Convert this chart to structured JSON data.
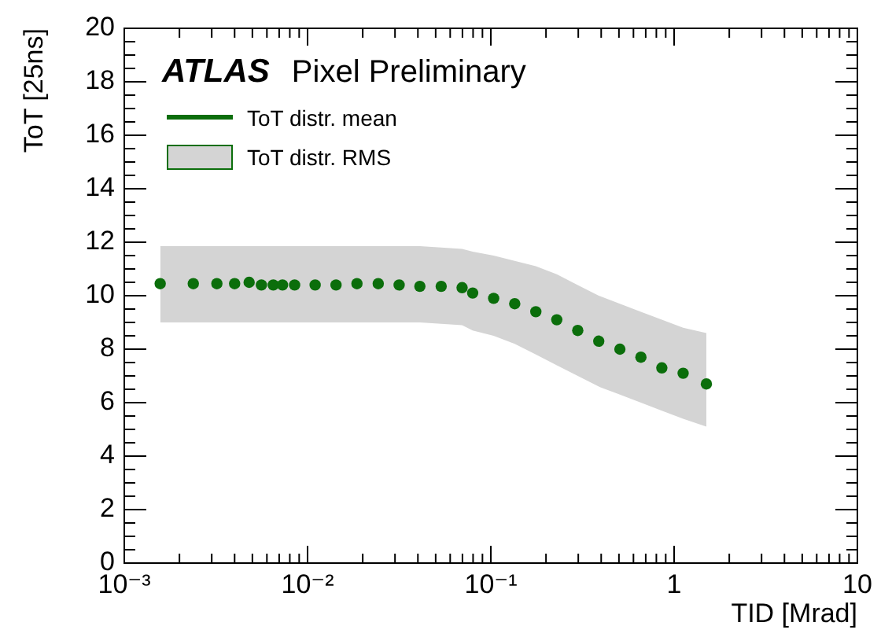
{
  "chart_data": {
    "type": "scatter",
    "xlabel": "TID [Mrad]",
    "ylabel": "ToT [25ns]",
    "annotations": [
      "ATLAS",
      "Pixel Preliminary",
      "ToT distr. RMS"
    ],
    "log": "x",
    "legend": "top left",
    "marker": "circle",
    "grid": false,
    "xlim": [
      0.001,
      10
    ],
    "ylim": [
      0,
      20
    ],
    "xticks": [
      {
        "value": 0.001,
        "label": "10⁻³"
      },
      {
        "value": 0.002,
        "label": null
      },
      {
        "value": 0.003,
        "label": null
      },
      {
        "value": 0.004,
        "label": null
      },
      {
        "value": 0.005,
        "label": null
      },
      {
        "value": 0.006,
        "label": null
      },
      {
        "value": 0.007,
        "label": null
      },
      {
        "value": 0.008,
        "label": null
      },
      {
        "value": 0.009,
        "label": null
      },
      {
        "value": 0.01,
        "label": "10⁻²"
      },
      {
        "value": 0.02,
        "label": null
      },
      {
        "value": 0.03,
        "label": null
      },
      {
        "value": 0.04,
        "label": null
      },
      {
        "value": 0.05,
        "label": null
      },
      {
        "value": 0.06,
        "label": null
      },
      {
        "value": 0.07,
        "label": null
      },
      {
        "value": 0.08,
        "label": null
      },
      {
        "value": 0.09,
        "label": null
      },
      {
        "value": 0.1,
        "label": "10⁻¹"
      },
      {
        "value": 0.2,
        "label": null
      },
      {
        "value": 0.3,
        "label": null
      },
      {
        "value": 0.4,
        "label": null
      },
      {
        "value": 0.5,
        "label": null
      },
      {
        "value": 0.6,
        "label": null
      },
      {
        "value": 0.7,
        "label": null
      },
      {
        "value": 0.8,
        "label": null
      },
      {
        "value": 0.9,
        "label": null
      },
      {
        "value": 1,
        "label": "1"
      },
      {
        "value": 2,
        "label": null
      },
      {
        "value": 3,
        "label": null
      },
      {
        "value": 4,
        "label": null
      },
      {
        "value": 5,
        "label": null
      },
      {
        "value": 6,
        "label": null
      },
      {
        "value": 7,
        "label": null
      },
      {
        "value": 8,
        "label": null
      },
      {
        "value": 9,
        "label": null
      },
      10
    ],
    "yticks": [
      0,
      {
        "value": 0.5,
        "label": null
      },
      {
        "value": 1,
        "label": null
      },
      {
        "value": 1.5,
        "label": null
      },
      2,
      {
        "value": 2.5,
        "label": null
      },
      {
        "value": 3,
        "label": null
      },
      {
        "value": 3.5,
        "label": null
      },
      4,
      {
        "value": 4.5,
        "label": null
      },
      {
        "value": 5,
        "label": null
      },
      {
        "value": 5.5,
        "label": null
      },
      6,
      {
        "value": 6.5,
        "label": null
      },
      {
        "value": 7,
        "label": null
      },
      {
        "value": 7.5,
        "label": null
      },
      8,
      {
        "value": 8.5,
        "label": null
      },
      {
        "value": 9,
        "label": null
      },
      {
        "value": 9.5,
        "label": null
      },
      10,
      {
        "value": 10.5,
        "label": null
      },
      {
        "value": 11,
        "label": null
      },
      {
        "value": 11.5,
        "label": null
      },
      12,
      {
        "value": 12.5,
        "label": null
      },
      {
        "value": 13,
        "label": null
      },
      {
        "value": 13.5,
        "label": null
      },
      14,
      {
        "value": 14.5,
        "label": null
      },
      {
        "value": 15,
        "label": null
      },
      {
        "value": 15.5,
        "label": null
      },
      16,
      {
        "value": 16.5,
        "label": null
      },
      {
        "value": 17,
        "label": null
      },
      {
        "value": 17.5,
        "label": null
      },
      18,
      {
        "value": 18.5,
        "label": null
      },
      {
        "value": 19,
        "label": null
      },
      {
        "value": 19.5,
        "label": null
      },
      20
    ],
    "series": [
      {
        "name": "ToT distr. mean",
        "color": "#0b6e0b",
        "x": [
          0.00157,
          0.00238,
          0.0032,
          0.004,
          0.0048,
          0.0056,
          0.0065,
          0.0073,
          0.0085,
          0.011,
          0.0143,
          0.0186,
          0.0243,
          0.0316,
          0.041,
          0.0536,
          0.0697,
          0.0796,
          0.1036,
          0.135,
          0.176,
          0.229,
          0.298,
          0.388,
          0.506,
          0.659,
          0.857,
          1.12,
          1.5
        ],
        "values": [
          10.45,
          10.45,
          10.45,
          10.45,
          10.5,
          10.4,
          10.4,
          10.4,
          10.4,
          10.4,
          10.4,
          10.45,
          10.45,
          10.4,
          10.35,
          10.35,
          10.3,
          10.1,
          9.9,
          9.7,
          9.4,
          9.1,
          8.7,
          8.3,
          8.0,
          7.7,
          7.3,
          7.1,
          6.7
        ],
        "upper": [
          11.85,
          11.85,
          11.85,
          11.85,
          11.85,
          11.85,
          11.85,
          11.85,
          11.85,
          11.85,
          11.85,
          11.85,
          11.85,
          11.85,
          11.85,
          11.8,
          11.75,
          11.65,
          11.5,
          11.3,
          11.1,
          10.8,
          10.4,
          10.0,
          9.7,
          9.4,
          9.1,
          8.8,
          8.6
        ],
        "lower": [
          9.0,
          9.0,
          9.0,
          9.0,
          9.0,
          9.0,
          9.0,
          9.0,
          9.0,
          9.0,
          9.0,
          9.0,
          9.0,
          9.0,
          9.0,
          8.95,
          8.9,
          8.7,
          8.5,
          8.2,
          7.8,
          7.4,
          7.0,
          6.6,
          6.3,
          6.0,
          5.7,
          5.4,
          5.1
        ]
      }
    ]
  }
}
